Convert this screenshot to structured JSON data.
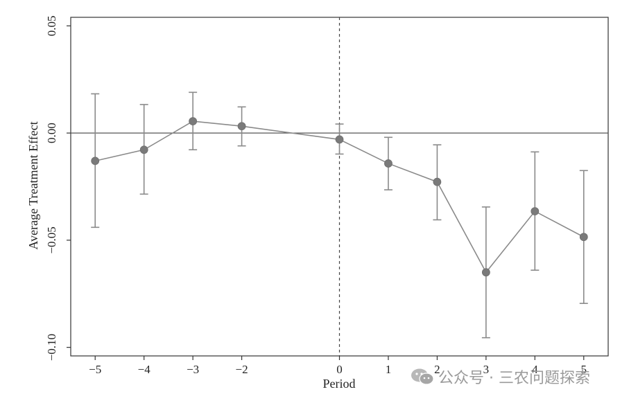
{
  "chart_data": {
    "type": "scatter",
    "xlabel": "Period",
    "ylabel": "Average Treatment Effect",
    "xlim": [
      -5.5,
      5.5
    ],
    "ylim": [
      -0.104,
      0.054
    ],
    "x_ticks": [
      -5,
      -4,
      -3,
      -2,
      0,
      1,
      2,
      3,
      4,
      5
    ],
    "x_tick_labels": [
      "−5",
      "−4",
      "−3",
      "−2",
      "0",
      "1",
      "2",
      "3",
      "4",
      "5"
    ],
    "y_ticks": [
      0.05,
      0.0,
      -0.05,
      -0.1
    ],
    "y_tick_labels": [
      "0.05",
      "0.00",
      "−0.05",
      "−0.10"
    ],
    "reference_lines": {
      "horizontal_y": 0,
      "vertical_dashed_x": 0
    },
    "grid": false,
    "series": [
      {
        "x": [
          -5,
          -4,
          -3,
          -2,
          0,
          1,
          2,
          3,
          4,
          5
        ],
        "values": [
          -0.013,
          -0.0078,
          0.0055,
          0.0032,
          -0.003,
          -0.0142,
          -0.0228,
          -0.065,
          -0.0365,
          -0.0485
        ],
        "ci_low": [
          -0.044,
          -0.0285,
          -0.0078,
          -0.006,
          -0.0098,
          -0.0265,
          -0.0405,
          -0.0955,
          -0.064,
          -0.0795
        ],
        "ci_high": [
          0.0183,
          0.0133,
          0.019,
          0.0122,
          0.0042,
          -0.002,
          -0.0055,
          -0.0345,
          -0.0088,
          -0.0175
        ],
        "color": "#8a8a8a"
      }
    ]
  },
  "watermark": {
    "text": "公众号 · 三农问题探索",
    "icon": "wechat-icon"
  }
}
